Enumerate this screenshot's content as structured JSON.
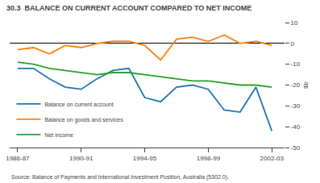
{
  "chart_data": {
    "type": "line",
    "title": "30.3  BALANCE ON CURRENT ACCOUNT COMPARED TO NET INCOME",
    "ylabel": "$b",
    "annotations": [
      "Source: Balance of Payments and International Investment Position, Australia (5302.0)."
    ],
    "x": [
      1986.5,
      1987.5,
      1988.5,
      1989.5,
      1990.5,
      1991.5,
      1992.5,
      1993.5,
      1994.5,
      1995.5,
      1996.5,
      1997.5,
      1998.5,
      1999.5,
      2000.5,
      2001.5,
      2002.5
    ],
    "series": [
      {
        "name": "Balance on current account",
        "values": [
          -12,
          -12,
          -17,
          -21,
          -22,
          -17,
          -13,
          -12,
          -26,
          -28,
          -21,
          -20,
          -22,
          -32,
          -33,
          -21,
          -42
        ]
      },
      {
        "name": "Balance on goods and services",
        "values": [
          -3,
          -2,
          -5,
          -1,
          -2,
          0,
          1,
          1,
          -1,
          -8,
          2,
          3,
          1,
          4,
          0,
          1,
          -1
        ]
      },
      {
        "name": "Net income",
        "values": [
          -9,
          -10,
          -12,
          -13,
          -14,
          -15,
          -14,
          -14,
          -15,
          -16,
          -17,
          -18,
          -18,
          -19,
          -20,
          -20,
          -21
        ]
      }
    ],
    "xlim": [
      1986.0,
      2003.3
    ],
    "xticks": [
      {
        "value": 1986.5,
        "label": "1986-87"
      },
      {
        "value": 1990.5,
        "label": "1990-91"
      },
      {
        "value": 1994.5,
        "label": "1994-95"
      },
      {
        "value": 1998.5,
        "label": "1998-99"
      },
      {
        "value": 2002.5,
        "label": "2002-03"
      }
    ],
    "ylim": [
      -50,
      10
    ],
    "yticks": [
      10,
      0,
      -10,
      -20,
      -30,
      -40,
      -50
    ],
    "grid": false,
    "legend": "lower left"
  }
}
